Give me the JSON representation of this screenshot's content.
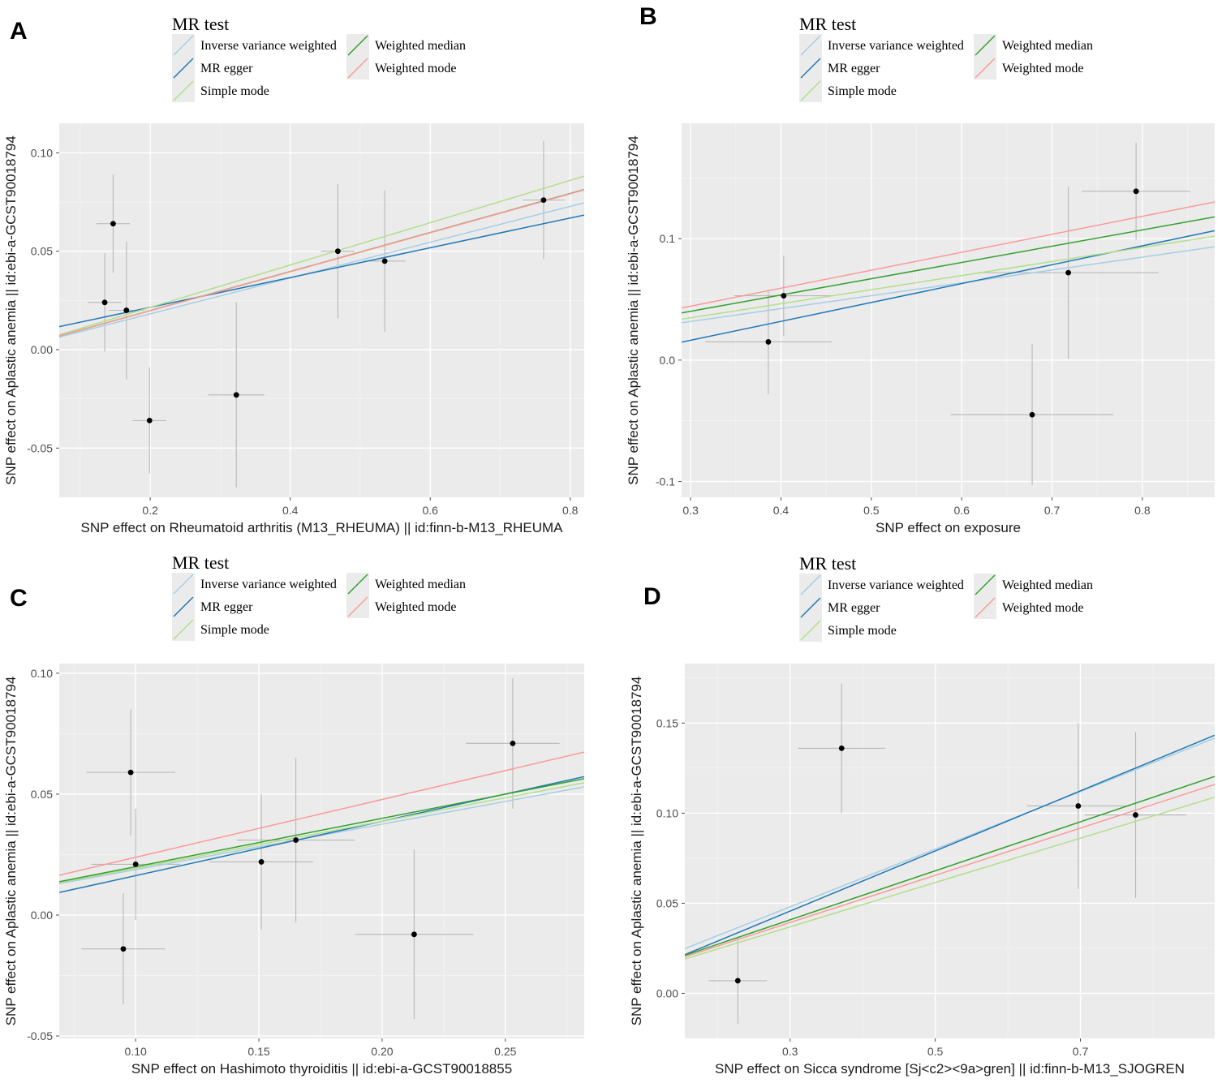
{
  "legend": {
    "title": "MR test",
    "methods": [
      {
        "label": "Inverse variance weighted",
        "color": "#a6cee3"
      },
      {
        "label": "MR egger",
        "color": "#1f78b4"
      },
      {
        "label": "Simple mode",
        "color": "#b2df8a"
      },
      {
        "label": "Weighted median",
        "color": "#33a02c"
      },
      {
        "label": "Weighted mode",
        "color": "#fb9a99"
      }
    ]
  },
  "chart_data": [
    {
      "panel": "A",
      "type": "scatter",
      "xlabel": "SNP effect on Rheumatoid arthritis (M13_RHEUMA) || id:finn-b-M13_RHEUMA",
      "ylabel": "SNP effect on Aplastic anemia || id:ebi-a-GCST90018794",
      "xlim": [
        0.07,
        0.82
      ],
      "ylim": [
        -0.075,
        0.115
      ],
      "xticks": [
        0.2,
        0.4,
        0.6,
        0.8
      ],
      "xtick_labels": [
        "0.2",
        "0.4",
        "0.6",
        "0.8"
      ],
      "yticks": [
        -0.05,
        0.0,
        0.05,
        0.1
      ],
      "ytick_labels": [
        "-0.05",
        "0.00",
        "0.05",
        "0.10"
      ],
      "points": [
        {
          "x": 0.147,
          "y": 0.064,
          "xerr": 0.024,
          "yerr": 0.025
        },
        {
          "x": 0.135,
          "y": 0.024,
          "xerr": 0.024,
          "yerr": 0.025
        },
        {
          "x": 0.166,
          "y": 0.02,
          "xerr": 0.025,
          "yerr": 0.035
        },
        {
          "x": 0.199,
          "y": -0.036,
          "xerr": 0.024,
          "yerr": 0.027
        },
        {
          "x": 0.323,
          "y": -0.023,
          "xerr": 0.04,
          "yerr": 0.047
        },
        {
          "x": 0.468,
          "y": 0.05,
          "xerr": 0.024,
          "yerr": 0.034
        },
        {
          "x": 0.535,
          "y": 0.045,
          "xerr": 0.03,
          "yerr": 0.036
        },
        {
          "x": 0.762,
          "y": 0.076,
          "xerr": 0.03,
          "yerr": 0.03
        }
      ],
      "series": [
        {
          "name": "Inverse variance weighted",
          "slope": 0.091,
          "intercept": 0.0
        },
        {
          "name": "MR egger",
          "slope": 0.0756,
          "intercept": 0.0064
        },
        {
          "name": "Simple mode",
          "slope": 0.1075,
          "intercept": 0.0
        },
        {
          "name": "Weighted median",
          "slope": 0.0992,
          "intercept": 0.0
        },
        {
          "name": "Weighted mode",
          "slope": 0.099,
          "intercept": 0.0
        }
      ]
    },
    {
      "panel": "B",
      "type": "scatter",
      "xlabel": "SNP effect on exposure",
      "ylabel": "SNP effect on Aplastic anemia || id:ebi-a-GCST90018794",
      "xlim": [
        0.29,
        0.88
      ],
      "ylim": [
        -0.113,
        0.195
      ],
      "xticks": [
        0.3,
        0.4,
        0.5,
        0.6,
        0.7,
        0.8
      ],
      "xtick_labels": [
        "0.3",
        "0.4",
        "0.5",
        "0.6",
        "0.7",
        "0.8"
      ],
      "yticks": [
        -0.1,
        0.0,
        0.1
      ],
      "ytick_labels": [
        "-0.1",
        "0.0",
        "0.1"
      ],
      "points": [
        {
          "x": 0.403,
          "y": 0.053,
          "xerr": 0.055,
          "yerr": 0.033
        },
        {
          "x": 0.386,
          "y": 0.015,
          "xerr": 0.07,
          "yerr": 0.043
        },
        {
          "x": 0.678,
          "y": -0.045,
          "xerr": 0.09,
          "yerr": 0.058
        },
        {
          "x": 0.718,
          "y": 0.072,
          "xerr": 0.1,
          "yerr": 0.071
        },
        {
          "x": 0.793,
          "y": 0.139,
          "xerr": 0.06,
          "yerr": 0.04
        }
      ],
      "series": [
        {
          "name": "Inverse variance weighted",
          "slope": 0.106,
          "intercept": 0.0
        },
        {
          "name": "MR egger",
          "slope": 0.1555,
          "intercept": -0.0303
        },
        {
          "name": "Simple mode",
          "slope": 0.116,
          "intercept": 0.0
        },
        {
          "name": "Weighted median",
          "slope": 0.134,
          "intercept": 0.0
        },
        {
          "name": "Weighted mode",
          "slope": 0.148,
          "intercept": 0.0
        }
      ]
    },
    {
      "panel": "C",
      "type": "scatter",
      "xlabel": "SNP effect on Hashimoto thyroiditis || id:ebi-a-GCST90018855",
      "ylabel": "SNP effect on Aplastic anemia || id:ebi-a-GCST90018794",
      "xlim": [
        0.069,
        0.282
      ],
      "ylim": [
        -0.051,
        0.104
      ],
      "xticks": [
        0.1,
        0.15,
        0.2,
        0.25
      ],
      "xtick_labels": [
        "0.10",
        "0.15",
        "0.20",
        "0.25"
      ],
      "yticks": [
        -0.05,
        0.0,
        0.05,
        0.1
      ],
      "ytick_labels": [
        "-0.05",
        "0.00",
        "0.05",
        "0.10"
      ],
      "points": [
        {
          "x": 0.098,
          "y": 0.059,
          "xerr": 0.018,
          "yerr": 0.026
        },
        {
          "x": 0.1,
          "y": 0.021,
          "xerr": 0.018,
          "yerr": 0.023
        },
        {
          "x": 0.095,
          "y": -0.014,
          "xerr": 0.017,
          "yerr": 0.023
        },
        {
          "x": 0.151,
          "y": 0.022,
          "xerr": 0.021,
          "yerr": 0.028
        },
        {
          "x": 0.165,
          "y": 0.031,
          "xerr": 0.024,
          "yerr": 0.034
        },
        {
          "x": 0.213,
          "y": -0.008,
          "xerr": 0.024,
          "yerr": 0.035
        },
        {
          "x": 0.253,
          "y": 0.071,
          "xerr": 0.019,
          "yerr": 0.027
        }
      ],
      "series": [
        {
          "name": "Inverse variance weighted",
          "slope": 0.188,
          "intercept": 0.0
        },
        {
          "name": "MR egger",
          "slope": 0.225,
          "intercept": -0.0062
        },
        {
          "name": "Simple mode",
          "slope": 0.194,
          "intercept": 0.0
        },
        {
          "name": "Weighted median",
          "slope": 0.2,
          "intercept": 0.0
        },
        {
          "name": "Weighted mode",
          "slope": 0.239,
          "intercept": 0.0
        }
      ]
    },
    {
      "panel": "D",
      "type": "scatter",
      "xlabel": "SNP effect on Sicca syndrome [Sj<c2><9a>gren] || id:finn-b-M13_SJOGREN",
      "ylabel": "SNP effect on Aplastic anemia || id:ebi-a-GCST90018794",
      "xlim": [
        0.155,
        0.885
      ],
      "ylim": [
        -0.025,
        0.183
      ],
      "xticks": [
        0.3,
        0.5,
        0.7
      ],
      "xtick_labels": [
        "0.3",
        "0.5",
        "0.7"
      ],
      "yticks": [
        0.0,
        0.05,
        0.1,
        0.15
      ],
      "ytick_labels": [
        "0.00",
        "0.05",
        "0.10",
        "0.15"
      ],
      "points": [
        {
          "x": 0.228,
          "y": 0.007,
          "xerr": 0.04,
          "yerr": 0.024
        },
        {
          "x": 0.371,
          "y": 0.136,
          "xerr": 0.06,
          "yerr": 0.036
        },
        {
          "x": 0.697,
          "y": 0.104,
          "xerr": 0.071,
          "yerr": 0.046
        },
        {
          "x": 0.776,
          "y": 0.099,
          "xerr": 0.07,
          "yerr": 0.046
        }
      ],
      "series": [
        {
          "name": "Inverse variance weighted",
          "slope": 0.16,
          "intercept": 0.0
        },
        {
          "name": "MR egger",
          "slope": 0.1668,
          "intercept": -0.0044
        },
        {
          "name": "Simple mode",
          "slope": 0.123,
          "intercept": 0.0
        },
        {
          "name": "Weighted median",
          "slope": 0.136,
          "intercept": 0.0
        },
        {
          "name": "Weighted mode",
          "slope": 0.131,
          "intercept": 0.0
        }
      ]
    }
  ]
}
